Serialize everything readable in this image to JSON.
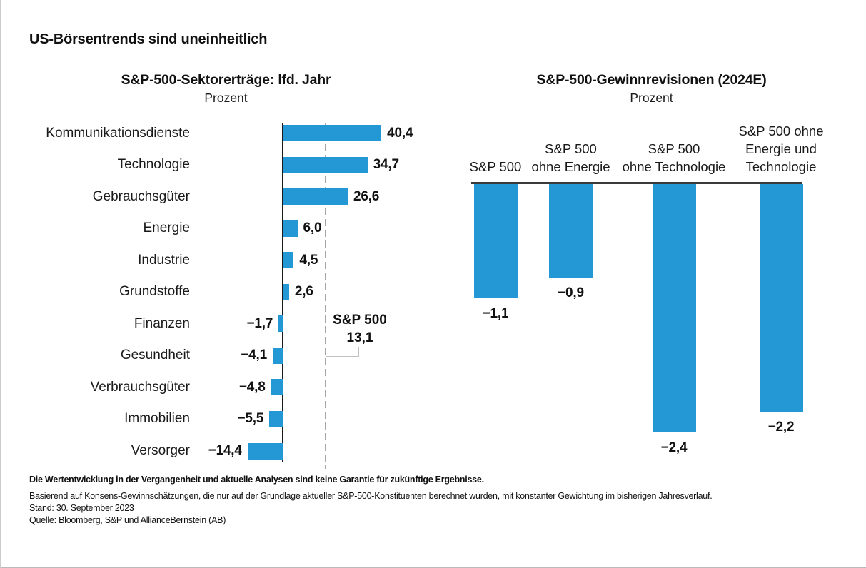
{
  "page_title": "US-Börsentrends sind uneinheitlich",
  "colors": {
    "bar_blue": "#2498d5",
    "axis_black": "#1a1a1a",
    "dashed_gray": "#a6a6a6",
    "zero_line_dark": "#3a3a3a"
  },
  "chart_data": [
    {
      "type": "bar",
      "orientation": "horizontal",
      "title": "S&P-500-Sektorerträge: lfd. Jahr",
      "subtitle": "Prozent",
      "grid": false,
      "xlim": [
        -20,
        45
      ],
      "categories": [
        "Kommunikationsdienste",
        "Technologie",
        "Gebrauchsgüter",
        "Energie",
        "Industrie",
        "Grundstoffe",
        "Finanzen",
        "Gesundheit",
        "Verbrauchsgüter",
        "Immobilien",
        "Versorger"
      ],
      "values": [
        40.4,
        34.7,
        26.6,
        6.0,
        4.5,
        2.6,
        -1.7,
        -4.1,
        -4.8,
        -5.5,
        -14.4
      ],
      "value_labels": [
        "40,4",
        "34,7",
        "26,6",
        "6,0",
        "4,5",
        "2,6",
        "−1,7",
        "−4,1",
        "−4,8",
        "−5,5",
        "−14,4"
      ],
      "reference_line": {
        "label": "S&P 500",
        "value": 13.1,
        "value_label": "13,1",
        "style": "dashed"
      }
    },
    {
      "type": "bar",
      "orientation": "vertical",
      "title": "S&P-500-Gewinnrevisionen (2024E)",
      "subtitle": "Prozent",
      "grid": false,
      "ylim": [
        -2.6,
        0
      ],
      "categories": [
        "S&P 500",
        "S&P 500 ohne Energie",
        "S&P 500 ohne Technologie",
        "S&P 500 ohne Energie und Technologie"
      ],
      "category_lines": [
        [
          "S&P 500"
        ],
        [
          "S&P 500",
          "ohne Energie"
        ],
        [
          "S&P 500",
          "ohne Technologie"
        ],
        [
          "S&P 500 ohne",
          "Energie und",
          "Technologie"
        ]
      ],
      "values": [
        -1.1,
        -0.9,
        -2.4,
        -2.2
      ],
      "value_labels": [
        "−1,1",
        "−0,9",
        "−2,4",
        "−2,2"
      ]
    }
  ],
  "footnotes": {
    "disclaimer": "Die Wertentwicklung in der Vergangenheit und aktuelle Analysen sind keine Garantie für zukünftige Ergebnisse.",
    "note": "Basierend auf Konsens-Gewinnschätzungen, die nur auf der Grundlage aktueller S&P-500-Konstituenten berechnet wurden, mit konstanter Gewichtung im bisherigen Jahresverlauf.",
    "as_of": "Stand: 30. September 2023",
    "source": "Quelle: Bloomberg, S&P und AllianceBernstein (AB)"
  }
}
